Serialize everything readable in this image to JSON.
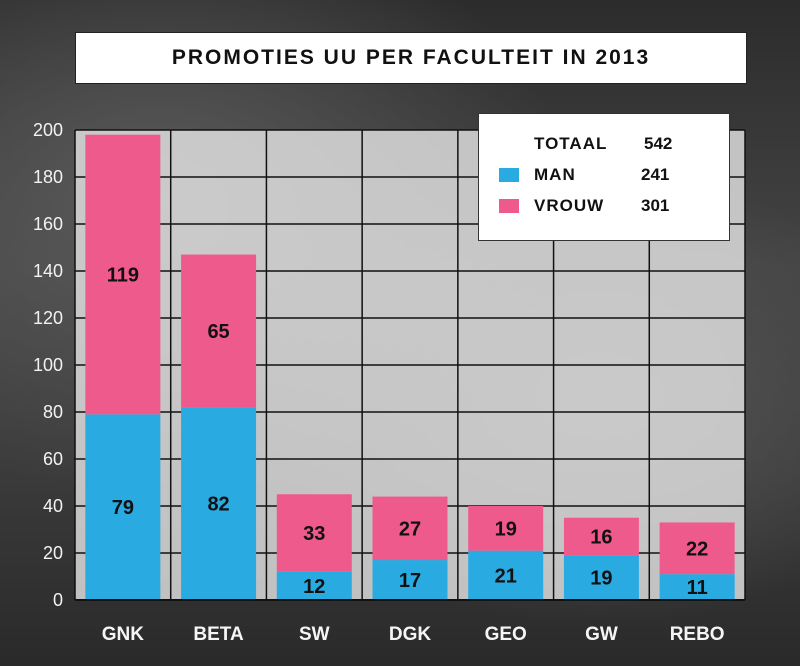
{
  "chart_data": {
    "type": "bar",
    "stacked": true,
    "title": "PROMOTIES UU PER FACULTEIT IN 2013",
    "categories": [
      "GNK",
      "BETA",
      "SW",
      "DGK",
      "GEO",
      "GW",
      "REBO"
    ],
    "series": [
      {
        "name": "MAN",
        "color": "#29aae1",
        "values": [
          79,
          82,
          12,
          17,
          21,
          19,
          11
        ]
      },
      {
        "name": "VROUW",
        "color": "#ef5a8c",
        "values": [
          119,
          65,
          33,
          27,
          19,
          16,
          22
        ]
      }
    ],
    "ylim": [
      0,
      200
    ],
    "yticks": [
      "0",
      "20",
      "40",
      "60",
      "80",
      "100",
      "120",
      "140",
      "160",
      "180",
      "200"
    ],
    "grid": true,
    "legend": {
      "placement": "top-right",
      "total_label": "TOTAAL",
      "total_value": "542",
      "entries": [
        {
          "label": "MAN",
          "value": "241",
          "color": "#29aae1"
        },
        {
          "label": "VROUW",
          "value": "301",
          "color": "#ef5a8c"
        }
      ]
    }
  }
}
